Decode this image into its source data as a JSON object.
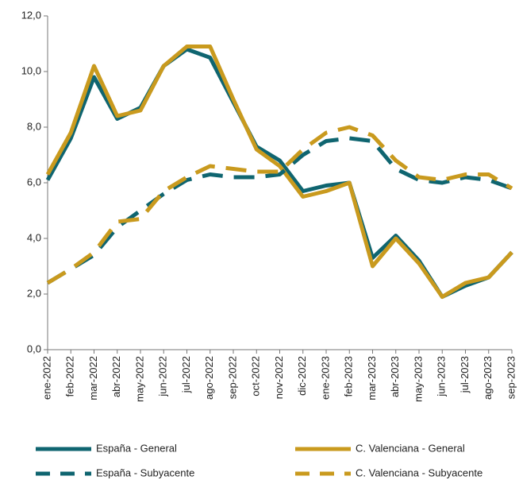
{
  "chart_data": {
    "type": "line",
    "categories": [
      "ene-2022",
      "feb-2022",
      "mar-2022",
      "abr-2022",
      "may-2022",
      "jun-2022",
      "jul-2022",
      "ago-2022",
      "sep-2022",
      "oct-2022",
      "nov-2022",
      "dic-2022",
      "ene-2023",
      "feb-2023",
      "mar-2023",
      "abr-2023",
      "may-2023",
      "jun-2023",
      "jul-2023",
      "ago-2023",
      "sep-2023"
    ],
    "series": [
      {
        "name": "España - General",
        "color": "#0f6570",
        "dashed": false,
        "values": [
          6.1,
          7.6,
          9.8,
          8.3,
          8.7,
          10.2,
          10.8,
          10.5,
          8.9,
          7.3,
          6.8,
          5.7,
          5.9,
          6.0,
          3.3,
          4.1,
          3.2,
          1.9,
          2.3,
          2.6,
          3.5
        ]
      },
      {
        "name": "C. Valenciana - General",
        "color": "#c99a1e",
        "dashed": false,
        "values": [
          6.3,
          7.8,
          10.2,
          8.4,
          8.6,
          10.2,
          10.9,
          10.9,
          9.0,
          7.2,
          6.6,
          5.5,
          5.7,
          6.0,
          3.0,
          4.0,
          3.1,
          1.9,
          2.4,
          2.6,
          3.5
        ]
      },
      {
        "name": "España - Subyacente",
        "color": "#0f6570",
        "dashed": true,
        "values": [
          2.4,
          2.9,
          3.4,
          4.4,
          5.0,
          5.6,
          6.1,
          6.3,
          6.2,
          6.2,
          6.3,
          7.0,
          7.5,
          7.6,
          7.5,
          6.5,
          6.1,
          6.0,
          6.2,
          6.1,
          5.8
        ]
      },
      {
        "name": "C. Valenciana - Subyacente",
        "color": "#c99a1e",
        "dashed": true,
        "values": [
          2.4,
          2.9,
          3.5,
          4.6,
          4.7,
          5.7,
          6.2,
          6.6,
          6.5,
          6.4,
          6.4,
          7.2,
          7.8,
          8.0,
          7.7,
          6.8,
          6.2,
          6.1,
          6.3,
          6.3,
          5.8
        ]
      }
    ],
    "ylim": [
      0,
      12
    ],
    "yticks": [
      {
        "value": 0,
        "label": "0,0"
      },
      {
        "value": 2,
        "label": "2,0"
      },
      {
        "value": 4,
        "label": "4,0"
      },
      {
        "value": 6,
        "label": "6,0"
      },
      {
        "value": 8,
        "label": "8,0"
      },
      {
        "value": 10,
        "label": "10,0"
      },
      {
        "value": 12,
        "label": "12,0"
      }
    ],
    "grid": false,
    "legend": "bottom"
  }
}
